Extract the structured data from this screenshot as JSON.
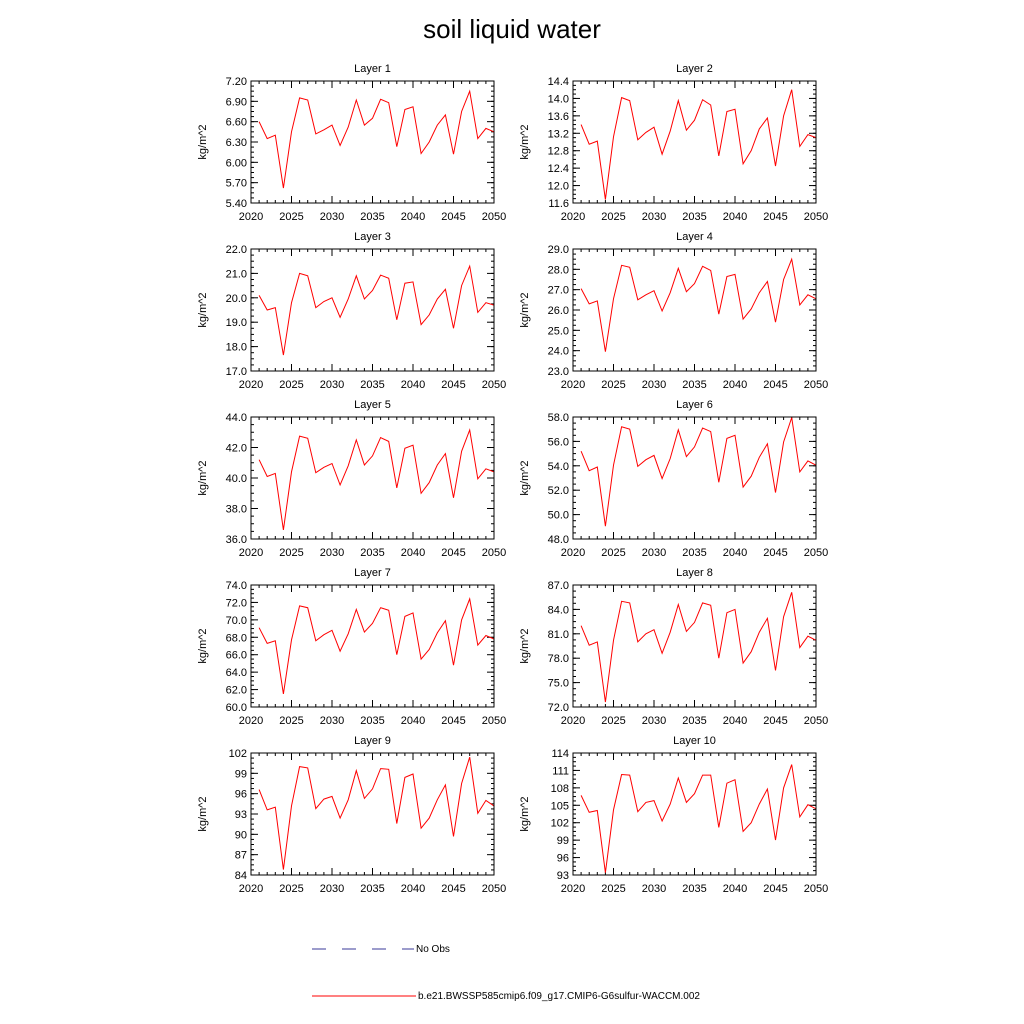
{
  "title": "soil liquid water",
  "legend": {
    "obs_label": "No Obs",
    "model_label": "b.e21.BWSSP585cmip6.f09_g17.CMIP6-G6sulfur-WACCM.002",
    "obs_color": "#3a3a9a",
    "model_color": "#ff0000"
  },
  "chart_data": [
    {
      "type": "line",
      "title": "Layer 1",
      "ylabel": "kg/m^2",
      "xlim": [
        2020,
        2050
      ],
      "ylim": [
        5.4,
        7.2
      ],
      "yticks": [
        "5.40",
        "5.70",
        "6.00",
        "6.30",
        "6.60",
        "6.90",
        "7.20"
      ],
      "xticks": [
        "2020",
        "2025",
        "2030",
        "2035",
        "2040",
        "2045",
        "2050"
      ],
      "series": [
        {
          "color": "#ff0000",
          "x": [
            2021,
            2022,
            2023,
            2024,
            2025,
            2026,
            2027,
            2028,
            2029,
            2030,
            2031,
            2032,
            2033,
            2034,
            2035,
            2036,
            2037,
            2038,
            2039,
            2040,
            2041,
            2042,
            2043,
            2044,
            2045,
            2046,
            2047,
            2048,
            2049,
            2050
          ],
          "values": [
            6.6,
            6.35,
            6.4,
            5.62,
            6.45,
            6.95,
            6.92,
            6.42,
            6.48,
            6.55,
            6.25,
            6.52,
            6.92,
            6.55,
            6.65,
            6.93,
            6.88,
            6.23,
            6.78,
            6.82,
            6.13,
            6.3,
            6.55,
            6.7,
            6.12,
            6.75,
            7.05,
            6.35,
            6.5,
            6.45
          ]
        }
      ]
    },
    {
      "type": "line",
      "title": "Layer 2",
      "ylabel": "kg/m^2",
      "xlim": [
        2020,
        2050
      ],
      "ylim": [
        11.6,
        14.4
      ],
      "yticks": [
        "11.6",
        "12.0",
        "12.4",
        "12.8",
        "13.2",
        "13.6",
        "14.0",
        "14.4"
      ],
      "xticks": [
        "2020",
        "2025",
        "2030",
        "2035",
        "2040",
        "2045",
        "2050"
      ],
      "series": [
        {
          "color": "#ff0000",
          "x": [
            2021,
            2022,
            2023,
            2024,
            2025,
            2026,
            2027,
            2028,
            2029,
            2030,
            2031,
            2032,
            2033,
            2034,
            2035,
            2036,
            2037,
            2038,
            2039,
            2040,
            2041,
            2042,
            2043,
            2044,
            2045,
            2046,
            2047,
            2048,
            2049,
            2050
          ],
          "values": [
            13.4,
            12.95,
            13.02,
            11.68,
            13.12,
            14.02,
            13.95,
            13.05,
            13.22,
            13.34,
            12.72,
            13.25,
            13.95,
            13.27,
            13.5,
            13.97,
            13.85,
            12.68,
            13.7,
            13.75,
            12.5,
            12.8,
            13.3,
            13.55,
            12.45,
            13.6,
            14.2,
            12.9,
            13.17,
            13.1
          ]
        }
      ]
    },
    {
      "type": "line",
      "title": "Layer 3",
      "ylabel": "kg/m^2",
      "xlim": [
        2020,
        2050
      ],
      "ylim": [
        17.0,
        22.0
      ],
      "yticks": [
        "17.0",
        "18.0",
        "19.0",
        "20.0",
        "21.0",
        "22.0"
      ],
      "xticks": [
        "2020",
        "2025",
        "2030",
        "2035",
        "2040",
        "2045",
        "2050"
      ],
      "series": [
        {
          "color": "#ff0000",
          "x": [
            2021,
            2022,
            2023,
            2024,
            2025,
            2026,
            2027,
            2028,
            2029,
            2030,
            2031,
            2032,
            2033,
            2034,
            2035,
            2036,
            2037,
            2038,
            2039,
            2040,
            2041,
            2042,
            2043,
            2044,
            2045,
            2046,
            2047,
            2048,
            2049,
            2050
          ],
          "values": [
            20.1,
            19.5,
            19.6,
            17.65,
            19.8,
            21.0,
            20.9,
            19.6,
            19.85,
            20.0,
            19.2,
            19.95,
            20.9,
            19.95,
            20.3,
            20.93,
            20.8,
            19.1,
            20.6,
            20.65,
            18.9,
            19.3,
            19.95,
            20.35,
            18.75,
            20.5,
            21.3,
            19.4,
            19.8,
            19.7
          ]
        }
      ]
    },
    {
      "type": "line",
      "title": "Layer 4",
      "ylabel": "kg/m^2",
      "xlim": [
        2020,
        2050
      ],
      "ylim": [
        23.0,
        29.0
      ],
      "yticks": [
        "23.0",
        "24.0",
        "25.0",
        "26.0",
        "27.0",
        "28.0",
        "29.0"
      ],
      "xticks": [
        "2020",
        "2025",
        "2030",
        "2035",
        "2040",
        "2045",
        "2050"
      ],
      "series": [
        {
          "color": "#ff0000",
          "x": [
            2021,
            2022,
            2023,
            2024,
            2025,
            2026,
            2027,
            2028,
            2029,
            2030,
            2031,
            2032,
            2033,
            2034,
            2035,
            2036,
            2037,
            2038,
            2039,
            2040,
            2041,
            2042,
            2043,
            2044,
            2045,
            2046,
            2047,
            2048,
            2049,
            2050
          ],
          "values": [
            27.05,
            26.3,
            26.45,
            23.95,
            26.55,
            28.2,
            28.1,
            26.5,
            26.75,
            26.95,
            25.95,
            26.85,
            28.05,
            26.9,
            27.3,
            28.15,
            27.95,
            25.8,
            27.65,
            27.75,
            25.55,
            26.05,
            26.85,
            27.4,
            25.4,
            27.5,
            28.5,
            26.25,
            26.75,
            26.55
          ]
        }
      ]
    },
    {
      "type": "line",
      "title": "Layer 5",
      "ylabel": "kg/m^2",
      "xlim": [
        2020,
        2050
      ],
      "ylim": [
        36.0,
        44.0
      ],
      "yticks": [
        "36.0",
        "38.0",
        "40.0",
        "42.0",
        "44.0"
      ],
      "xticks": [
        "2020",
        "2025",
        "2030",
        "2035",
        "2040",
        "2045",
        "2050"
      ],
      "series": [
        {
          "color": "#ff0000",
          "x": [
            2021,
            2022,
            2023,
            2024,
            2025,
            2026,
            2027,
            2028,
            2029,
            2030,
            2031,
            2032,
            2033,
            2034,
            2035,
            2036,
            2037,
            2038,
            2039,
            2040,
            2041,
            2042,
            2043,
            2044,
            2045,
            2046,
            2047,
            2048,
            2049,
            2050
          ],
          "values": [
            41.2,
            40.1,
            40.3,
            36.6,
            40.4,
            42.75,
            42.6,
            40.35,
            40.7,
            40.95,
            39.55,
            40.8,
            42.5,
            40.85,
            41.45,
            42.65,
            42.4,
            39.35,
            41.95,
            42.15,
            39.0,
            39.7,
            40.85,
            41.6,
            38.7,
            41.75,
            43.15,
            39.95,
            40.6,
            40.4
          ]
        }
      ]
    },
    {
      "type": "line",
      "title": "Layer 6",
      "ylabel": "kg/m^2",
      "xlim": [
        2020,
        2050
      ],
      "ylim": [
        48.0,
        58.0
      ],
      "yticks": [
        "48.0",
        "50.0",
        "52.0",
        "54.0",
        "56.0",
        "58.0"
      ],
      "xticks": [
        "2020",
        "2025",
        "2030",
        "2035",
        "2040",
        "2045",
        "2050"
      ],
      "series": [
        {
          "color": "#ff0000",
          "x": [
            2021,
            2022,
            2023,
            2024,
            2025,
            2026,
            2027,
            2028,
            2029,
            2030,
            2031,
            2032,
            2033,
            2034,
            2035,
            2036,
            2037,
            2038,
            2039,
            2040,
            2041,
            2042,
            2043,
            2044,
            2045,
            2046,
            2047,
            2048,
            2049,
            2050
          ],
          "values": [
            55.2,
            53.6,
            53.9,
            49.05,
            54.05,
            57.2,
            57.0,
            53.95,
            54.5,
            54.85,
            52.95,
            54.6,
            56.95,
            54.75,
            55.55,
            57.1,
            56.8,
            52.65,
            56.25,
            56.5,
            52.25,
            53.15,
            54.7,
            55.8,
            51.8,
            55.95,
            57.95,
            53.5,
            54.4,
            54.05
          ]
        }
      ]
    },
    {
      "type": "line",
      "title": "Layer 7",
      "ylabel": "kg/m^2",
      "xlim": [
        2020,
        2050
      ],
      "ylim": [
        60.0,
        74.0
      ],
      "yticks": [
        "60.0",
        "62.0",
        "64.0",
        "66.0",
        "68.0",
        "70.0",
        "72.0",
        "74.0"
      ],
      "xticks": [
        "2020",
        "2025",
        "2030",
        "2035",
        "2040",
        "2045",
        "2050"
      ],
      "series": [
        {
          "color": "#ff0000",
          "x": [
            2021,
            2022,
            2023,
            2024,
            2025,
            2026,
            2027,
            2028,
            2029,
            2030,
            2031,
            2032,
            2033,
            2034,
            2035,
            2036,
            2037,
            2038,
            2039,
            2040,
            2041,
            2042,
            2043,
            2044,
            2045,
            2046,
            2047,
            2048,
            2049,
            2050
          ],
          "values": [
            69.1,
            67.3,
            67.6,
            61.5,
            67.7,
            71.6,
            71.4,
            67.6,
            68.3,
            68.8,
            66.4,
            68.4,
            71.2,
            68.6,
            69.6,
            71.4,
            71.1,
            66.0,
            70.4,
            70.8,
            65.5,
            66.6,
            68.5,
            69.9,
            64.8,
            70.0,
            72.4,
            67.1,
            68.2,
            67.8
          ]
        }
      ]
    },
    {
      "type": "line",
      "title": "Layer 8",
      "ylabel": "kg/m^2",
      "xlim": [
        2020,
        2050
      ],
      "ylim": [
        72.0,
        87.0
      ],
      "yticks": [
        "72.0",
        "75.0",
        "78.0",
        "81.0",
        "84.0",
        "87.0"
      ],
      "xticks": [
        "2020",
        "2025",
        "2030",
        "2035",
        "2040",
        "2045",
        "2050"
      ],
      "series": [
        {
          "color": "#ff0000",
          "x": [
            2021,
            2022,
            2023,
            2024,
            2025,
            2026,
            2027,
            2028,
            2029,
            2030,
            2031,
            2032,
            2033,
            2034,
            2035,
            2036,
            2037,
            2038,
            2039,
            2040,
            2041,
            2042,
            2043,
            2044,
            2045,
            2046,
            2047,
            2048,
            2049,
            2050
          ],
          "values": [
            82.0,
            79.6,
            80.0,
            72.6,
            80.2,
            85.0,
            84.8,
            80.0,
            81.0,
            81.5,
            78.6,
            81.2,
            84.6,
            81.3,
            82.4,
            84.8,
            84.5,
            78.0,
            83.6,
            84.0,
            77.4,
            78.8,
            81.2,
            82.9,
            76.5,
            83.1,
            86.1,
            79.3,
            80.7,
            80.2
          ]
        }
      ]
    },
    {
      "type": "line",
      "title": "Layer 9",
      "ylabel": "kg/m^2",
      "xlim": [
        2020,
        2050
      ],
      "ylim": [
        84,
        102
      ],
      "yticks": [
        "84",
        "87",
        "90",
        "93",
        "96",
        "99",
        "102"
      ],
      "xticks": [
        "2020",
        "2025",
        "2030",
        "2035",
        "2040",
        "2045",
        "2050"
      ],
      "series": [
        {
          "color": "#ff0000",
          "x": [
            2021,
            2022,
            2023,
            2024,
            2025,
            2026,
            2027,
            2028,
            2029,
            2030,
            2031,
            2032,
            2033,
            2034,
            2035,
            2036,
            2037,
            2038,
            2039,
            2040,
            2041,
            2042,
            2043,
            2044,
            2045,
            2046,
            2047,
            2048,
            2049,
            2050
          ],
          "values": [
            96.6,
            93.6,
            94.0,
            84.8,
            94.2,
            100.0,
            99.8,
            93.8,
            95.2,
            95.6,
            92.4,
            95.1,
            99.4,
            95.3,
            96.7,
            99.7,
            99.6,
            91.6,
            98.4,
            98.9,
            90.9,
            92.4,
            95.1,
            97.3,
            89.7,
            97.5,
            101.4,
            93.1,
            95.0,
            94.2
          ]
        }
      ]
    },
    {
      "type": "line",
      "title": "Layer 10",
      "ylabel": "kg/m^2",
      "xlim": [
        2020,
        2050
      ],
      "ylim": [
        93,
        114
      ],
      "yticks": [
        "93",
        "96",
        "99",
        "102",
        "105",
        "108",
        "111",
        "114"
      ],
      "xticks": [
        "2020",
        "2025",
        "2030",
        "2035",
        "2040",
        "2045",
        "2050"
      ],
      "series": [
        {
          "color": "#ff0000",
          "x": [
            2021,
            2022,
            2023,
            2024,
            2025,
            2026,
            2027,
            2028,
            2029,
            2030,
            2031,
            2032,
            2033,
            2034,
            2035,
            2036,
            2037,
            2038,
            2039,
            2040,
            2041,
            2042,
            2043,
            2044,
            2045,
            2046,
            2047,
            2048,
            2049,
            2050
          ],
          "values": [
            106.7,
            103.8,
            104.1,
            93.4,
            104.2,
            110.3,
            110.2,
            103.9,
            105.5,
            105.8,
            102.3,
            105.2,
            109.7,
            105.5,
            107.0,
            110.2,
            110.2,
            101.2,
            108.8,
            109.4,
            100.5,
            102.0,
            105.2,
            107.8,
            99.0,
            108.0,
            112.0,
            103.0,
            105.1,
            104.4
          ]
        }
      ]
    }
  ]
}
